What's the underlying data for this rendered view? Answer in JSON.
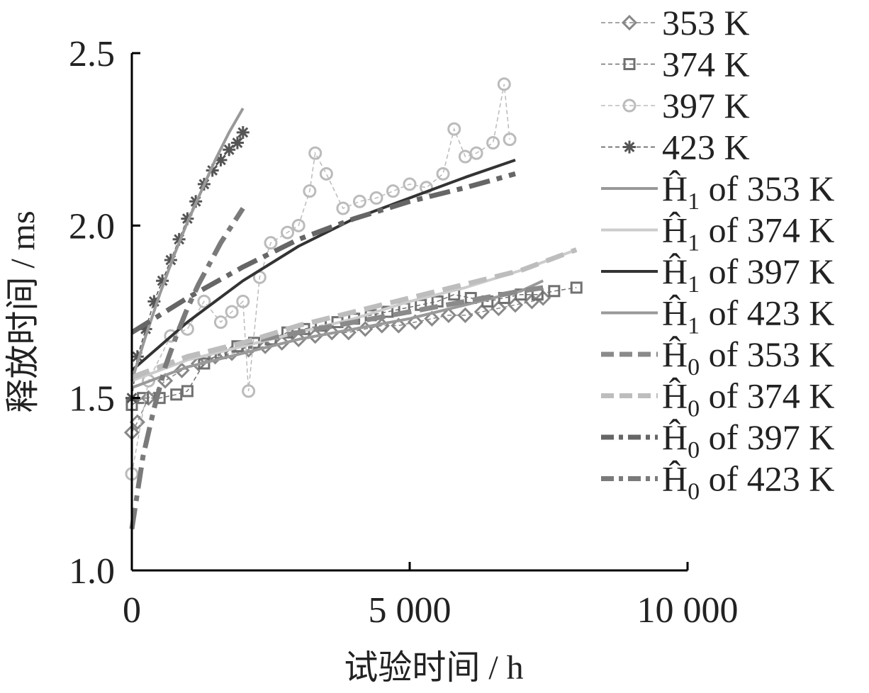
{
  "chart_data": {
    "type": "line",
    "xlabel": "试验时间 / h",
    "ylabel": "释放时间 / ms",
    "xlim": [
      0,
      10000
    ],
    "ylim": [
      1.0,
      2.5
    ],
    "xticks": [
      0,
      5000,
      10000
    ],
    "xtick_labels": [
      "0",
      "5 000",
      "10 000"
    ],
    "yticks": [
      1.0,
      1.5,
      2.0,
      2.5
    ],
    "ytick_labels": [
      "1.0",
      "1.5",
      "2.0",
      "2.5"
    ],
    "grid": false,
    "legend_position": "right",
    "series": [
      {
        "name": "353 K",
        "kind": "data",
        "marker": "diamond",
        "color": "#888888",
        "x": [
          0,
          100,
          300,
          600,
          900,
          1200,
          1500,
          1800,
          2100,
          2400,
          2700,
          3000,
          3300,
          3600,
          3900,
          4200,
          4500,
          4800,
          5100,
          5400,
          5700,
          6000,
          6300,
          6600,
          6900,
          7200,
          7400
        ],
        "y": [
          1.4,
          1.43,
          1.5,
          1.55,
          1.58,
          1.6,
          1.62,
          1.63,
          1.64,
          1.65,
          1.66,
          1.67,
          1.68,
          1.69,
          1.69,
          1.7,
          1.71,
          1.71,
          1.72,
          1.73,
          1.74,
          1.74,
          1.75,
          1.76,
          1.77,
          1.78,
          1.79
        ]
      },
      {
        "name": "374 K",
        "kind": "data",
        "marker": "square",
        "color": "#707070",
        "x": [
          0,
          200,
          500,
          800,
          1000,
          1300,
          1600,
          1900,
          2200,
          2500,
          2800,
          3100,
          3400,
          3700,
          4000,
          4300,
          4600,
          4900,
          5200,
          5500,
          5800,
          6100,
          6400,
          6700,
          7000,
          7300,
          7600,
          8000
        ],
        "y": [
          1.48,
          1.5,
          1.5,
          1.51,
          1.52,
          1.6,
          1.63,
          1.65,
          1.66,
          1.67,
          1.69,
          1.7,
          1.71,
          1.72,
          1.73,
          1.74,
          1.75,
          1.76,
          1.77,
          1.78,
          1.8,
          1.79,
          1.78,
          1.79,
          1.8,
          1.8,
          1.81,
          1.82
        ]
      },
      {
        "name": "397 K",
        "kind": "data",
        "marker": "circle",
        "color": "#bbbbbb",
        "x": [
          0,
          300,
          700,
          1000,
          1300,
          1600,
          1800,
          2000,
          2100,
          2300,
          2500,
          2800,
          3000,
          3200,
          3300,
          3500,
          3800,
          4100,
          4400,
          4700,
          5000,
          5300,
          5600,
          5800,
          6000,
          6200,
          6500,
          6700,
          6800
        ],
        "y": [
          1.28,
          1.55,
          1.68,
          1.7,
          1.78,
          1.72,
          1.75,
          1.78,
          1.52,
          1.85,
          1.95,
          1.98,
          2.0,
          2.1,
          2.21,
          2.15,
          2.05,
          2.07,
          2.08,
          2.1,
          2.12,
          2.11,
          2.15,
          2.28,
          2.2,
          2.21,
          2.24,
          2.41,
          2.25
        ]
      },
      {
        "name": "423 K",
        "kind": "data",
        "marker": "star",
        "color": "#555555",
        "x": [
          0,
          100,
          250,
          400,
          550,
          700,
          850,
          1000,
          1150,
          1300,
          1450,
          1600,
          1750,
          1900,
          2000
        ],
        "y": [
          1.5,
          1.62,
          1.7,
          1.78,
          1.84,
          1.9,
          1.96,
          2.02,
          2.07,
          2.12,
          2.16,
          2.19,
          2.22,
          2.24,
          2.27
        ]
      },
      {
        "name": "Ĥ₁ of 353 K",
        "kind": "fit",
        "style": "solid",
        "color": "#999999",
        "width": 4,
        "x": [
          0,
          1000,
          2000,
          3000,
          4000,
          5000,
          6000,
          7000,
          7400
        ],
        "y": [
          1.53,
          1.59,
          1.63,
          1.67,
          1.7,
          1.73,
          1.77,
          1.81,
          1.84
        ]
      },
      {
        "name": "Ĥ₁ of 374 K",
        "kind": "fit",
        "style": "solid",
        "color": "#cccccc",
        "width": 4,
        "x": [
          0,
          1000,
          2000,
          3000,
          4000,
          5000,
          6000,
          7000,
          8000
        ],
        "y": [
          1.55,
          1.61,
          1.65,
          1.69,
          1.73,
          1.78,
          1.82,
          1.87,
          1.93
        ]
      },
      {
        "name": "Ĥ₁ of 397 K",
        "kind": "fit",
        "style": "solid",
        "color": "#333333",
        "width": 4,
        "x": [
          0,
          500,
          1000,
          1500,
          2000,
          3000,
          4000,
          5000,
          6000,
          6900
        ],
        "y": [
          1.58,
          1.65,
          1.72,
          1.78,
          1.84,
          1.94,
          2.02,
          2.08,
          2.14,
          2.19
        ]
      },
      {
        "name": "Ĥ₁ of 423 K",
        "kind": "fit",
        "style": "solid",
        "color": "#999999",
        "width": 4,
        "x": [
          0,
          250,
          500,
          750,
          1000,
          1250,
          1500,
          1750,
          2000
        ],
        "y": [
          1.55,
          1.68,
          1.8,
          1.91,
          2.01,
          2.1,
          2.19,
          2.27,
          2.34
        ]
      },
      {
        "name": "Ĥ₀ of 353 K",
        "kind": "fit",
        "style": "dash",
        "color": "#8a8a8a",
        "width": 7,
        "x": [
          0,
          1000,
          2000,
          3000,
          4000,
          5000,
          6000,
          7000,
          7400
        ],
        "y": [
          1.56,
          1.62,
          1.66,
          1.69,
          1.72,
          1.75,
          1.78,
          1.81,
          1.82
        ]
      },
      {
        "name": "Ĥ₀ of 374 K",
        "kind": "fit",
        "style": "dash",
        "color": "#bdbdbd",
        "width": 7,
        "x": [
          0,
          1000,
          2000,
          3000,
          4000,
          5000,
          6000,
          7000,
          8000
        ],
        "y": [
          1.56,
          1.62,
          1.66,
          1.71,
          1.75,
          1.79,
          1.83,
          1.87,
          1.93
        ]
      },
      {
        "name": "Ĥ₀ of 397 K",
        "kind": "fit",
        "style": "dashdot",
        "color": "#666666",
        "width": 7,
        "x": [
          0,
          500,
          1000,
          2000,
          3000,
          4000,
          5000,
          6000,
          6900
        ],
        "y": [
          1.69,
          1.74,
          1.79,
          1.88,
          1.96,
          2.02,
          2.07,
          2.11,
          2.15
        ]
      },
      {
        "name": "Ĥ₀ of 423 K",
        "kind": "fit",
        "style": "dashdot",
        "color": "#7a7a7a",
        "width": 7,
        "x": [
          0,
          200,
          400,
          600,
          800,
          1000,
          1200,
          1400,
          1600,
          1800,
          2000
        ],
        "y": [
          1.12,
          1.33,
          1.47,
          1.59,
          1.68,
          1.76,
          1.83,
          1.89,
          1.95,
          2.0,
          2.05
        ]
      }
    ]
  },
  "legend": {
    "entries": [
      {
        "main": "353 K",
        "sub": ""
      },
      {
        "main": "374 K",
        "sub": ""
      },
      {
        "main": "397 K",
        "sub": ""
      },
      {
        "main": "423 K",
        "sub": ""
      },
      {
        "main": "Ĥ",
        "sub": "1",
        "suffix": " of 353 K"
      },
      {
        "main": "Ĥ",
        "sub": "1",
        "suffix": " of 374 K"
      },
      {
        "main": "Ĥ",
        "sub": "1",
        "suffix": " of 397 K"
      },
      {
        "main": "Ĥ",
        "sub": "1",
        "suffix": " of 423 K"
      },
      {
        "main": "Ĥ",
        "sub": "0",
        "suffix": " of 353 K"
      },
      {
        "main": "Ĥ",
        "sub": "0",
        "suffix": " of 374 K"
      },
      {
        "main": "Ĥ",
        "sub": "0",
        "suffix": " of 397 K"
      },
      {
        "main": "Ĥ",
        "sub": "0",
        "suffix": " of 423 K"
      }
    ]
  }
}
